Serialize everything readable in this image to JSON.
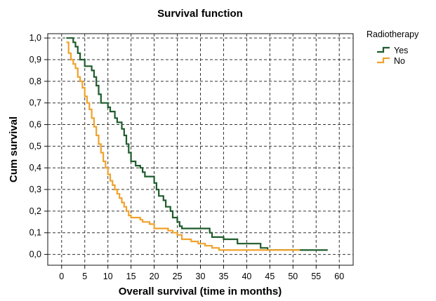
{
  "chart_data": {
    "type": "line",
    "subtype": "step",
    "title": "Survival function",
    "xlabel": "Overall survival (time in months)",
    "ylabel": "Cum survival",
    "xlim": [
      -3,
      63
    ],
    "ylim": [
      -0.05,
      1.02
    ],
    "xticks": [
      0,
      5,
      10,
      15,
      20,
      25,
      30,
      35,
      40,
      45,
      50,
      55,
      60
    ],
    "yticks": [
      0.0,
      0.1,
      0.2,
      0.3,
      0.4,
      0.5,
      0.6,
      0.7,
      0.8,
      0.9,
      1.0
    ],
    "ytick_labels": [
      "0,0",
      "0,1",
      "0,2",
      "0,3",
      "0,4",
      "0,5",
      "0,6",
      "0,7",
      "0,8",
      "0,9",
      "1,0"
    ],
    "grid": true,
    "grid_style": "dashed",
    "legend": {
      "title": "Radiotherapy",
      "position": "top-right-outside"
    },
    "series": [
      {
        "name": "Yes",
        "color": "#1e5c2c",
        "points": [
          [
            1,
            1.0
          ],
          [
            2.5,
            0.98
          ],
          [
            3,
            0.96
          ],
          [
            3.5,
            0.93
          ],
          [
            4,
            0.9
          ],
          [
            5,
            0.87
          ],
          [
            6.5,
            0.85
          ],
          [
            7,
            0.82
          ],
          [
            7.5,
            0.78
          ],
          [
            8,
            0.74
          ],
          [
            8.5,
            0.7
          ],
          [
            10,
            0.68
          ],
          [
            10.5,
            0.66
          ],
          [
            11.5,
            0.63
          ],
          [
            12,
            0.61
          ],
          [
            13,
            0.58
          ],
          [
            13.5,
            0.55
          ],
          [
            14,
            0.51
          ],
          [
            14.5,
            0.47
          ],
          [
            15,
            0.43
          ],
          [
            16,
            0.41
          ],
          [
            17,
            0.4
          ],
          [
            17.5,
            0.38
          ],
          [
            18,
            0.36
          ],
          [
            20,
            0.33
          ],
          [
            20.5,
            0.3
          ],
          [
            21,
            0.27
          ],
          [
            22,
            0.25
          ],
          [
            22.5,
            0.22
          ],
          [
            23.5,
            0.2
          ],
          [
            24,
            0.17
          ],
          [
            25,
            0.15
          ],
          [
            25.5,
            0.13
          ],
          [
            26,
            0.12
          ],
          [
            32,
            0.1
          ],
          [
            32.5,
            0.08
          ],
          [
            35,
            0.07
          ],
          [
            38,
            0.05
          ],
          [
            43,
            0.03
          ],
          [
            44.5,
            0.02
          ],
          [
            56,
            0.02
          ],
          [
            57.5,
            0.02
          ]
        ]
      },
      {
        "name": "No",
        "color": "#f0a22c",
        "points": [
          [
            1,
            0.98
          ],
          [
            1.5,
            0.93
          ],
          [
            2,
            0.9
          ],
          [
            2.5,
            0.88
          ],
          [
            3,
            0.86
          ],
          [
            3.5,
            0.82
          ],
          [
            4,
            0.8
          ],
          [
            4.5,
            0.77
          ],
          [
            5,
            0.73
          ],
          [
            5.5,
            0.7
          ],
          [
            6,
            0.67
          ],
          [
            6.5,
            0.63
          ],
          [
            7,
            0.59
          ],
          [
            7.5,
            0.55
          ],
          [
            8,
            0.51
          ],
          [
            8.5,
            0.47
          ],
          [
            9,
            0.43
          ],
          [
            9.5,
            0.4
          ],
          [
            10,
            0.37
          ],
          [
            10.5,
            0.34
          ],
          [
            11,
            0.32
          ],
          [
            11.5,
            0.3
          ],
          [
            12,
            0.28
          ],
          [
            12.5,
            0.26
          ],
          [
            13,
            0.24
          ],
          [
            13.5,
            0.22
          ],
          [
            14,
            0.2
          ],
          [
            14.5,
            0.18
          ],
          [
            15,
            0.17
          ],
          [
            17,
            0.16
          ],
          [
            17.5,
            0.15
          ],
          [
            19,
            0.14
          ],
          [
            20,
            0.12
          ],
          [
            23,
            0.11
          ],
          [
            24,
            0.1
          ],
          [
            25,
            0.09
          ],
          [
            26,
            0.07
          ],
          [
            28,
            0.06
          ],
          [
            29.5,
            0.05
          ],
          [
            31,
            0.04
          ],
          [
            32.5,
            0.03
          ],
          [
            34,
            0.02
          ],
          [
            48,
            0.02
          ],
          [
            51.5,
            0.02
          ]
        ]
      }
    ]
  }
}
